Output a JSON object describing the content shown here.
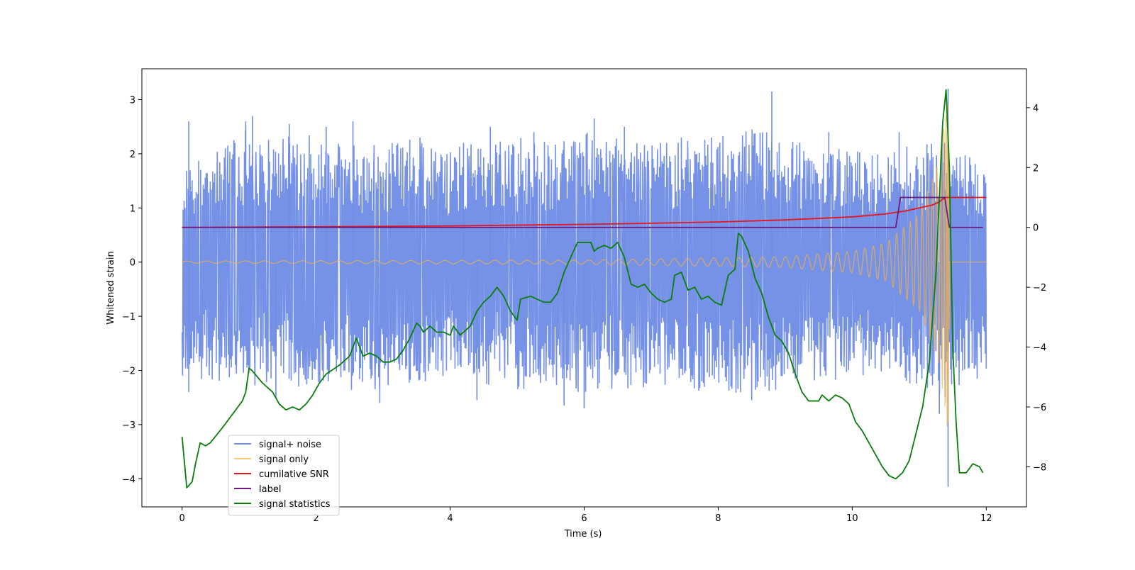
{
  "chart_data": {
    "type": "line",
    "xlabel": "Time (s)",
    "ylabel": "Whitened strain",
    "y2label": "",
    "xlim": [
      -0.6,
      12.6
    ],
    "ylim": [
      -4.52,
      3.57
    ],
    "y2lim": [
      -9.34,
      5.3
    ],
    "xticks": [
      0,
      2,
      4,
      6,
      8,
      10,
      12
    ],
    "yticks": [
      -4,
      -3,
      -2,
      -1,
      0,
      1,
      2,
      3
    ],
    "y2ticks": [
      -8,
      -6,
      -4,
      -2,
      0,
      2,
      4
    ],
    "legend_position": "lower-left",
    "grid": false,
    "series": [
      {
        "name": "signal+ noise",
        "color": "#6f8ce6",
        "axis": "left",
        "kind": "noise-band",
        "x_range": [
          0,
          12
        ],
        "band_upper": [
          [
            0,
            2.0
          ],
          [
            0.3,
            1.9
          ],
          [
            0.9,
            2.5
          ],
          [
            1.3,
            2.3
          ],
          [
            2.0,
            2.4
          ],
          [
            2.6,
            2.2
          ],
          [
            3.4,
            2.3
          ],
          [
            4.0,
            2.1
          ],
          [
            4.8,
            2.3
          ],
          [
            5.5,
            2.3
          ],
          [
            6.1,
            2.4
          ],
          [
            7.0,
            2.2
          ],
          [
            7.9,
            2.3
          ],
          [
            8.5,
            2.5
          ],
          [
            9.5,
            2.1
          ],
          [
            10.5,
            2.1
          ],
          [
            11.0,
            2.2
          ],
          [
            11.3,
            2.4
          ],
          [
            11.5,
            2.1
          ],
          [
            12,
            1.9
          ]
        ],
        "band_lower": [
          [
            0,
            -2.1
          ],
          [
            0.9,
            -2.3
          ],
          [
            2.0,
            -2.3
          ],
          [
            2.6,
            -2.5
          ],
          [
            3.4,
            -2.3
          ],
          [
            4.0,
            -2.2
          ],
          [
            4.8,
            -2.3
          ],
          [
            5.5,
            -2.5
          ],
          [
            6.1,
            -2.4
          ],
          [
            7.0,
            -2.3
          ],
          [
            7.9,
            -2.4
          ],
          [
            8.5,
            -2.5
          ],
          [
            9.5,
            -2.2
          ],
          [
            10.5,
            -2.1
          ],
          [
            11.0,
            -2.3
          ],
          [
            11.4,
            -2.5
          ],
          [
            11.6,
            -2.3
          ],
          [
            12,
            -2.2
          ]
        ],
        "spikes": [
          [
            0.1,
            2.6
          ],
          [
            0.95,
            2.6
          ],
          [
            1.05,
            2.7
          ],
          [
            1.6,
            2.55
          ],
          [
            2.15,
            2.5
          ],
          [
            2.55,
            2.6
          ],
          [
            3.55,
            2.3
          ],
          [
            4.2,
            2.2
          ],
          [
            4.6,
            2.5
          ],
          [
            5.25,
            2.4
          ],
          [
            6.15,
            2.65
          ],
          [
            6.6,
            2.5
          ],
          [
            7.45,
            2.3
          ],
          [
            7.9,
            2.3
          ],
          [
            8.8,
            3.15
          ],
          [
            9.65,
            2.4
          ],
          [
            10.7,
            2.4
          ],
          [
            11.43,
            3.2
          ],
          [
            1.4,
            -2.5
          ],
          [
            2.95,
            -2.6
          ],
          [
            4.4,
            -2.55
          ],
          [
            5.7,
            -2.65
          ],
          [
            6.0,
            -2.7
          ],
          [
            8.5,
            -2.55
          ],
          [
            11.43,
            -4.15
          ],
          [
            11.3,
            -2.8
          ],
          [
            0.1,
            -2.4
          ]
        ]
      },
      {
        "name": "signal only",
        "color": "#f5b041",
        "axis": "left",
        "kind": "chirp",
        "merger_time": 11.43,
        "amplitude": [
          [
            0,
            0.02
          ],
          [
            6,
            0.04
          ],
          [
            9,
            0.1
          ],
          [
            10,
            0.2
          ],
          [
            10.5,
            0.35
          ],
          [
            11.0,
            0.9
          ],
          [
            11.3,
            1.9
          ],
          [
            11.43,
            3.2
          ],
          [
            11.46,
            0.0
          ],
          [
            12,
            0.0
          ]
        ]
      },
      {
        "name": "cumilative SNR",
        "color": "#e8141c",
        "axis": "right",
        "kind": "line",
        "points": [
          [
            0,
            0.0
          ],
          [
            2,
            0.02
          ],
          [
            4,
            0.05
          ],
          [
            6,
            0.1
          ],
          [
            8,
            0.18
          ],
          [
            9,
            0.25
          ],
          [
            10,
            0.35
          ],
          [
            10.5,
            0.45
          ],
          [
            10.8,
            0.55
          ],
          [
            11.0,
            0.65
          ],
          [
            11.2,
            0.75
          ],
          [
            11.3,
            0.85
          ],
          [
            11.38,
            1.0
          ],
          [
            11.45,
            1.0
          ],
          [
            12,
            1.0
          ]
        ]
      },
      {
        "name": "label",
        "color": "#6b1a7f",
        "axis": "right",
        "kind": "line",
        "points": [
          [
            0,
            0.0
          ],
          [
            10.65,
            0.0
          ],
          [
            10.72,
            1.0
          ],
          [
            11.38,
            1.0
          ],
          [
            11.45,
            0.0
          ],
          [
            11.95,
            0.0
          ]
        ]
      },
      {
        "name": "signal statistics",
        "color": "#0a7d0a",
        "axis": "right",
        "kind": "line",
        "points": [
          [
            0.0,
            -7.0
          ],
          [
            0.07,
            -8.7
          ],
          [
            0.15,
            -8.5
          ],
          [
            0.2,
            -7.9
          ],
          [
            0.27,
            -7.2
          ],
          [
            0.35,
            -7.3
          ],
          [
            0.42,
            -7.2
          ],
          [
            0.6,
            -6.7
          ],
          [
            0.8,
            -6.1
          ],
          [
            0.9,
            -5.8
          ],
          [
            0.95,
            -5.5
          ],
          [
            1.0,
            -4.7
          ],
          [
            1.05,
            -4.8
          ],
          [
            1.2,
            -5.2
          ],
          [
            1.35,
            -5.5
          ],
          [
            1.45,
            -5.9
          ],
          [
            1.55,
            -6.1
          ],
          [
            1.65,
            -6.0
          ],
          [
            1.75,
            -6.1
          ],
          [
            1.85,
            -5.9
          ],
          [
            1.95,
            -5.6
          ],
          [
            2.05,
            -5.2
          ],
          [
            2.15,
            -4.9
          ],
          [
            2.35,
            -4.6
          ],
          [
            2.5,
            -4.3
          ],
          [
            2.6,
            -3.7
          ],
          [
            2.7,
            -4.3
          ],
          [
            2.8,
            -4.2
          ],
          [
            2.9,
            -4.3
          ],
          [
            3.0,
            -4.5
          ],
          [
            3.1,
            -4.5
          ],
          [
            3.2,
            -4.4
          ],
          [
            3.3,
            -4.1
          ],
          [
            3.4,
            -3.7
          ],
          [
            3.5,
            -3.2
          ],
          [
            3.55,
            -3.3
          ],
          [
            3.6,
            -3.5
          ],
          [
            3.7,
            -3.3
          ],
          [
            3.8,
            -3.5
          ],
          [
            3.9,
            -3.5
          ],
          [
            4.0,
            -3.6
          ],
          [
            4.05,
            -3.3
          ],
          [
            4.15,
            -3.6
          ],
          [
            4.3,
            -3.3
          ],
          [
            4.4,
            -2.8
          ],
          [
            4.5,
            -2.5
          ],
          [
            4.6,
            -2.3
          ],
          [
            4.7,
            -2.0
          ],
          [
            4.8,
            -2.3
          ],
          [
            4.9,
            -2.8
          ],
          [
            5.0,
            -3.1
          ],
          [
            5.05,
            -2.4
          ],
          [
            5.2,
            -2.3
          ],
          [
            5.3,
            -2.4
          ],
          [
            5.4,
            -2.5
          ],
          [
            5.5,
            -2.5
          ],
          [
            5.6,
            -2.2
          ],
          [
            5.7,
            -1.5
          ],
          [
            5.8,
            -1.0
          ],
          [
            5.9,
            -0.5
          ],
          [
            6.0,
            -0.5
          ],
          [
            6.1,
            -0.5
          ],
          [
            6.15,
            -0.8
          ],
          [
            6.2,
            -0.7
          ],
          [
            6.3,
            -0.6
          ],
          [
            6.4,
            -0.7
          ],
          [
            6.5,
            -0.5
          ],
          [
            6.6,
            -1.0
          ],
          [
            6.7,
            -1.9
          ],
          [
            6.8,
            -2.0
          ],
          [
            6.9,
            -1.9
          ],
          [
            7.0,
            -2.2
          ],
          [
            7.1,
            -2.4
          ],
          [
            7.2,
            -2.5
          ],
          [
            7.3,
            -2.4
          ],
          [
            7.35,
            -1.6
          ],
          [
            7.45,
            -1.5
          ],
          [
            7.55,
            -2.1
          ],
          [
            7.65,
            -2.0
          ],
          [
            7.75,
            -2.4
          ],
          [
            7.85,
            -2.3
          ],
          [
            7.95,
            -2.5
          ],
          [
            8.05,
            -2.6
          ],
          [
            8.15,
            -1.6
          ],
          [
            8.25,
            -1.4
          ],
          [
            8.3,
            -0.2
          ],
          [
            8.35,
            -0.3
          ],
          [
            8.45,
            -0.8
          ],
          [
            8.55,
            -1.7
          ],
          [
            8.65,
            -2.2
          ],
          [
            8.75,
            -3.0
          ],
          [
            8.85,
            -3.6
          ],
          [
            8.95,
            -3.8
          ],
          [
            9.05,
            -4.2
          ],
          [
            9.15,
            -4.9
          ],
          [
            9.25,
            -5.5
          ],
          [
            9.35,
            -5.8
          ],
          [
            9.5,
            -5.8
          ],
          [
            9.55,
            -5.6
          ],
          [
            9.65,
            -5.8
          ],
          [
            9.75,
            -5.6
          ],
          [
            9.85,
            -5.7
          ],
          [
            9.95,
            -5.9
          ],
          [
            10.05,
            -6.5
          ],
          [
            10.15,
            -6.8
          ],
          [
            10.25,
            -7.2
          ],
          [
            10.35,
            -7.6
          ],
          [
            10.45,
            -8.0
          ],
          [
            10.55,
            -8.3
          ],
          [
            10.65,
            -8.4
          ],
          [
            10.75,
            -8.2
          ],
          [
            10.85,
            -7.8
          ],
          [
            10.95,
            -6.9
          ],
          [
            11.05,
            -6.0
          ],
          [
            11.15,
            -4.5
          ],
          [
            11.25,
            -1.5
          ],
          [
            11.35,
            3.5
          ],
          [
            11.4,
            4.6
          ],
          [
            11.45,
            2.0
          ],
          [
            11.5,
            -4.0
          ],
          [
            11.55,
            -6.5
          ],
          [
            11.6,
            -8.2
          ],
          [
            11.7,
            -8.2
          ],
          [
            11.8,
            -7.9
          ],
          [
            11.9,
            -8.0
          ],
          [
            11.95,
            -8.2
          ]
        ]
      }
    ]
  }
}
